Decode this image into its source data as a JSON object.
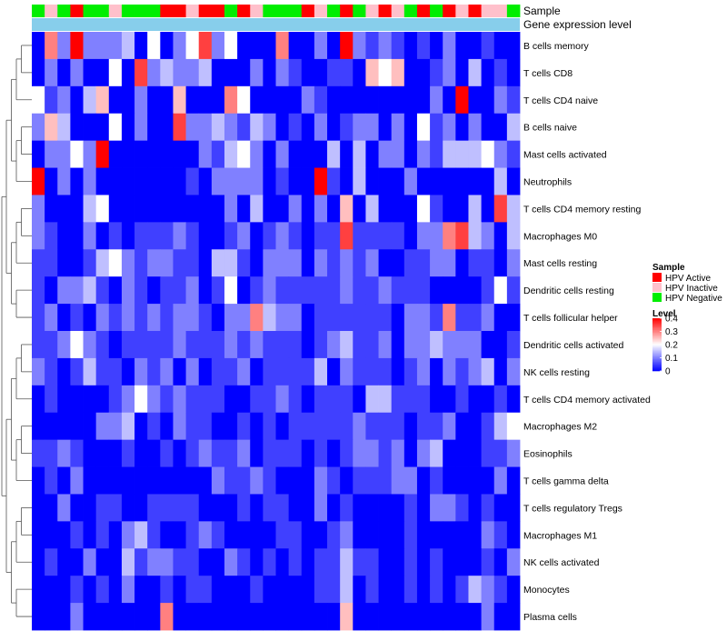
{
  "chart_data": {
    "type": "heatmap",
    "title": "",
    "xlabel": "",
    "ylabel": "",
    "annotation_tracks": [
      {
        "key": "sample",
        "label": "Sample"
      },
      {
        "key": "gene_expression",
        "label": "Gene expression level"
      }
    ],
    "rows": [
      "B cells memory",
      "T cells CD8",
      "T cells CD4 naive",
      "B cells naive",
      "Mast cells activated",
      "Neutrophils",
      "T cells CD4 memory resting",
      "Macrophages M0",
      "Mast cells resting",
      "Dendritic cells resting",
      "T cells follicular helper",
      "Dendritic cells activated",
      "NK cells resting",
      "T cells CD4 memory activated",
      "Macrophages M2",
      "Eosinophils",
      "T cells gamma delta",
      "T cells regulatory  Tregs",
      "Macrophages M1",
      "NK cells activated",
      "Monocytes",
      "Plasma cells"
    ],
    "sample_groups": [
      "N",
      "I",
      "N",
      "A",
      "N",
      "N",
      "I",
      "N",
      "N",
      "N",
      "A",
      "A",
      "I",
      "A",
      "A",
      "N",
      "A",
      "I",
      "N",
      "N",
      "N",
      "A",
      "I",
      "N",
      "A",
      "N",
      "I",
      "A",
      "I",
      "N",
      "A",
      "N",
      "A",
      "I",
      "A",
      "I",
      "I",
      "N"
    ],
    "values": [
      [
        0,
        0.3,
        0.1,
        0.4,
        0.1,
        0.1,
        0.1,
        0.15,
        0,
        0.2,
        0,
        0.1,
        0.2,
        0.35,
        0.1,
        0.2,
        0,
        0,
        0,
        0.3,
        0,
        0,
        0.1,
        0,
        0.4,
        0.1,
        0.05,
        0.1,
        0.05,
        0,
        0.05,
        0,
        0.1,
        0,
        0,
        0.05,
        0,
        0
      ],
      [
        0,
        0.1,
        0,
        0.1,
        0,
        0,
        0.2,
        0,
        0.35,
        0.1,
        0.15,
        0.1,
        0.1,
        0.15,
        0,
        0,
        0,
        0.1,
        0,
        0.1,
        0.05,
        0,
        0,
        0.05,
        0.05,
        0,
        0.25,
        0.2,
        0.25,
        0,
        0,
        0.05,
        0.1,
        0,
        0.15,
        0,
        0.05,
        0
      ],
      [
        0.2,
        0.05,
        0.1,
        0,
        0.15,
        0.25,
        0,
        0,
        0.1,
        0,
        0,
        0.25,
        0,
        0,
        0,
        0.3,
        0.2,
        0,
        0,
        0,
        0,
        0.1,
        0.05,
        0,
        0,
        0,
        0,
        0,
        0,
        0,
        0,
        0.1,
        0,
        0.4,
        0,
        0,
        0.1,
        0.05
      ],
      [
        0.1,
        0.25,
        0.15,
        0,
        0,
        0,
        0.2,
        0,
        0.1,
        0,
        0,
        0.35,
        0.1,
        0.1,
        0.15,
        0.1,
        0.05,
        0.15,
        0.1,
        0,
        0.05,
        0,
        0.1,
        0,
        0.05,
        0.1,
        0.1,
        0,
        0.1,
        0,
        0.2,
        0.05,
        0.1,
        0,
        0.1,
        0,
        0,
        0.15
      ],
      [
        0,
        0.1,
        0.1,
        0.2,
        0.1,
        0.4,
        0,
        0,
        0,
        0,
        0,
        0,
        0,
        0.1,
        0.05,
        0.15,
        0.2,
        0.1,
        0,
        0.1,
        0,
        0,
        0,
        0.15,
        0,
        0.15,
        0,
        0.1,
        0.1,
        0,
        0.1,
        0.05,
        0.15,
        0.15,
        0.15,
        0.2,
        0.1,
        0.05
      ],
      [
        0.4,
        0,
        0.1,
        0,
        0.1,
        0,
        0,
        0,
        0,
        0,
        0,
        0,
        0.05,
        0,
        0.1,
        0.1,
        0.1,
        0.1,
        0,
        0.05,
        0,
        0,
        0.4,
        0.05,
        0,
        0.15,
        0,
        0,
        0,
        0.1,
        0,
        0,
        0,
        0,
        0,
        0,
        0.15,
        0
      ],
      [
        0.1,
        0,
        0,
        0,
        0.15,
        0.2,
        0,
        0,
        0,
        0,
        0,
        0,
        0,
        0,
        0,
        0.1,
        0,
        0.15,
        0,
        0,
        0.1,
        0,
        0.1,
        0,
        0.25,
        0,
        0.15,
        0,
        0,
        0,
        0.2,
        0.05,
        0,
        0,
        0.15,
        0,
        0.35,
        0.15
      ],
      [
        0.1,
        0.05,
        0,
        0,
        0.1,
        0,
        0.05,
        0,
        0.05,
        0.05,
        0.05,
        0.1,
        0.05,
        0,
        0,
        0.05,
        0.1,
        0,
        0.05,
        0.1,
        0.05,
        0,
        0.05,
        0.05,
        0.35,
        0.05,
        0.05,
        0.05,
        0.05,
        0,
        0.1,
        0.1,
        0.3,
        0.35,
        0.15,
        0.1,
        0,
        0.15
      ],
      [
        0.05,
        0.05,
        0,
        0,
        0.05,
        0.15,
        0.2,
        0.1,
        0.05,
        0.1,
        0.1,
        0.05,
        0.05,
        0,
        0.15,
        0.15,
        0.05,
        0,
        0.1,
        0.1,
        0.1,
        0,
        0.1,
        0.05,
        0.1,
        0.05,
        0.1,
        0,
        0,
        0.05,
        0.05,
        0.1,
        0.1,
        0,
        0.05,
        0.05,
        0,
        0.1
      ],
      [
        0.05,
        0,
        0.1,
        0.1,
        0.15,
        0.05,
        0,
        0.1,
        0.05,
        0,
        0.05,
        0.05,
        0.1,
        0,
        0.05,
        0.2,
        0,
        0.05,
        0.1,
        0.05,
        0.05,
        0.05,
        0.05,
        0.05,
        0.1,
        0.05,
        0.05,
        0.1,
        0.05,
        0.05,
        0.05,
        0,
        0,
        0,
        0,
        0.05,
        0.2,
        0.05
      ],
      [
        0.05,
        0.1,
        0,
        0.05,
        0,
        0.1,
        0.05,
        0.1,
        0.05,
        0.1,
        0.05,
        0.1,
        0.1,
        0.05,
        0,
        0.1,
        0.1,
        0.3,
        0.15,
        0.1,
        0.1,
        0,
        0.05,
        0.05,
        0.05,
        0.05,
        0.05,
        0.05,
        0,
        0.1,
        0.1,
        0.05,
        0.3,
        0.05,
        0.05,
        0.1,
        0,
        0
      ],
      [
        0.05,
        0.05,
        0.1,
        0.2,
        0.1,
        0.05,
        0,
        0.05,
        0.05,
        0.05,
        0.05,
        0.1,
        0.05,
        0.05,
        0.05,
        0.1,
        0.05,
        0.1,
        0.05,
        0.05,
        0.05,
        0,
        0.05,
        0.1,
        0.15,
        0.05,
        0.05,
        0.1,
        0,
        0.1,
        0.1,
        0.15,
        0.1,
        0.1,
        0.1,
        0,
        0,
        0.05
      ],
      [
        0.1,
        0.05,
        0,
        0.05,
        0.15,
        0.05,
        0.05,
        0,
        0.1,
        0.05,
        0.1,
        0,
        0.1,
        0,
        0.05,
        0.05,
        0.1,
        0,
        0.05,
        0.05,
        0.05,
        0.05,
        0.15,
        0,
        0.1,
        0.05,
        0.05,
        0.05,
        0,
        0.05,
        0.1,
        0,
        0.1,
        0.05,
        0.1,
        0.15,
        0,
        0.1
      ],
      [
        0,
        0.05,
        0,
        0,
        0,
        0,
        0.05,
        0.1,
        0.2,
        0.1,
        0.05,
        0.1,
        0.05,
        0.05,
        0.05,
        0,
        0,
        0.05,
        0.05,
        0.1,
        0.05,
        0,
        0.05,
        0.05,
        0.05,
        0,
        0.15,
        0.15,
        0.05,
        0.05,
        0.05,
        0,
        0,
        0.05,
        0,
        0,
        0.05,
        0
      ],
      [
        0,
        0,
        0,
        0,
        0,
        0.1,
        0.1,
        0.15,
        0,
        0.05,
        0,
        0.1,
        0.05,
        0.05,
        0,
        0,
        0.05,
        0,
        0.05,
        0,
        0.05,
        0.05,
        0.05,
        0.05,
        0.05,
        0.1,
        0.05,
        0.05,
        0.05,
        0,
        0.05,
        0.05,
        0.1,
        0,
        0,
        0.05,
        0.15,
        0.2
      ],
      [
        0.05,
        0.05,
        0.1,
        0.05,
        0,
        0,
        0,
        0.05,
        0,
        0,
        0.05,
        0,
        0.05,
        0.1,
        0.05,
        0.05,
        0.1,
        0,
        0.05,
        0.05,
        0.05,
        0,
        0.05,
        0,
        0.05,
        0.1,
        0.1,
        0.05,
        0.1,
        0,
        0.1,
        0.15,
        0,
        0,
        0,
        0.05,
        0.05,
        0.1
      ],
      [
        0,
        0.05,
        0,
        0.1,
        0,
        0,
        0,
        0,
        0,
        0,
        0,
        0,
        0,
        0,
        0.1,
        0.05,
        0.05,
        0.1,
        0.05,
        0,
        0,
        0,
        0.1,
        0.05,
        0,
        0.05,
        0.05,
        0.05,
        0.1,
        0.1,
        0,
        0.05,
        0,
        0,
        0,
        0,
        0.1,
        0
      ],
      [
        0,
        0,
        0.1,
        0,
        0,
        0.05,
        0.05,
        0,
        0,
        0.05,
        0.05,
        0.05,
        0.05,
        0,
        0,
        0,
        0.05,
        0,
        0.05,
        0.05,
        0,
        0,
        0.1,
        0,
        0.05,
        0,
        0,
        0,
        0,
        0.05,
        0,
        0.1,
        0.1,
        0.05,
        0,
        0.05,
        0,
        0
      ],
      [
        0,
        0,
        0,
        0.05,
        0,
        0.05,
        0,
        0.1,
        0.15,
        0.05,
        0,
        0,
        0.05,
        0.1,
        0.05,
        0,
        0,
        0,
        0,
        0.05,
        0.05,
        0,
        0,
        0.05,
        0.1,
        0,
        0,
        0,
        0,
        0.05,
        0,
        0,
        0,
        0,
        0,
        0.1,
        0.05,
        0
      ],
      [
        0,
        0.05,
        0,
        0,
        0.1,
        0,
        0,
        0.15,
        0.05,
        0.1,
        0.1,
        0.05,
        0.05,
        0,
        0,
        0.1,
        0.05,
        0,
        0.05,
        0,
        0.05,
        0,
        0.05,
        0.05,
        0.15,
        0.05,
        0.05,
        0,
        0,
        0.05,
        0,
        0.05,
        0,
        0,
        0,
        0.05,
        0,
        0.1
      ],
      [
        0,
        0,
        0,
        0.05,
        0,
        0.05,
        0,
        0.1,
        0,
        0,
        0.05,
        0,
        0.05,
        0.05,
        0,
        0,
        0,
        0.05,
        0,
        0,
        0,
        0,
        0.05,
        0.05,
        0.15,
        0,
        0.05,
        0,
        0,
        0.05,
        0,
        0.05,
        0,
        0.05,
        0.15,
        0.1,
        0.05,
        0
      ],
      [
        0,
        0,
        0,
        0.1,
        0,
        0,
        0,
        0,
        0,
        0,
        0.3,
        0,
        0,
        0,
        0,
        0,
        0,
        0,
        0,
        0,
        0,
        0,
        0,
        0,
        0.25,
        0,
        0,
        0,
        0,
        0,
        0,
        0,
        0,
        0,
        0,
        0.1,
        0,
        0
      ]
    ],
    "legend": {
      "position": "right",
      "sample_title": "Sample",
      "sample_entries": [
        {
          "code": "A",
          "label": "HPV Active",
          "color": "#ff0000"
        },
        {
          "code": "I",
          "label": "HPV Inactive",
          "color": "#ffc0cb"
        },
        {
          "code": "N",
          "label": "HPV Negative",
          "color": "#00ee00"
        }
      ],
      "level_title": "Level",
      "level_ticks": [
        0,
        0.1,
        0.2,
        0.3,
        0.4
      ],
      "level_tick_labels": [
        "0",
        "0.1",
        "0.2",
        "0.3",
        "0.4"
      ],
      "range": [
        0,
        0.4
      ]
    },
    "colors": {
      "low": "#0000ff",
      "mid": "#ffffff",
      "high": "#ff0000",
      "gene_expression_track": "#87ceeb"
    }
  }
}
